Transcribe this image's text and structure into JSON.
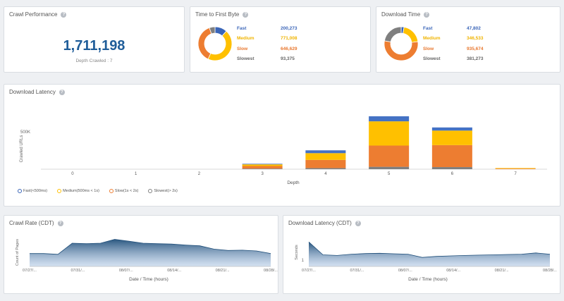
{
  "crawl_performance": {
    "title": "Crawl Performance",
    "total": "1,711,198",
    "depth_note": "Depth Crawled : 7"
  },
  "ttfb": {
    "title": "Time to First Byte",
    "rows": [
      {
        "label": "Fast",
        "value": "200,273",
        "color": "#3a65b8"
      },
      {
        "label": "Medium",
        "value": "771,008",
        "color": "#ffc000"
      },
      {
        "label": "Slow",
        "value": "646,629",
        "color": "#ed7d31"
      },
      {
        "label": "Slowest",
        "value": "93,375",
        "color": "#7f7f7f"
      }
    ]
  },
  "download_time": {
    "title": "Download Time",
    "rows": [
      {
        "label": "Fast",
        "value": "47,802",
        "color": "#3a65b8"
      },
      {
        "label": "Medium",
        "value": "346,533",
        "color": "#ffc000"
      },
      {
        "label": "Slow",
        "value": "935,674",
        "color": "#ed7d31"
      },
      {
        "label": "Slowest",
        "value": "381,273",
        "color": "#7f7f7f"
      }
    ]
  },
  "download_latency": {
    "title": "Download Latency",
    "ylabel": "Crawled URLs",
    "xlabel": "Depth",
    "ytick": "500K",
    "legend": [
      "Fast(<500ms)",
      "Medium(500ms < 1s)",
      "Slow(1s < 2s)",
      "Slowest(> 2s)"
    ]
  },
  "crawl_rate": {
    "title": "Crawl Rate (CDT)",
    "ylabel": "Count of Pages",
    "xlabel": "Date / Time (hours)",
    "x_ticks": [
      "07/27/...",
      "07/31/...",
      "08/07/...",
      "08/14/...",
      "08/21/...",
      "08/28/..."
    ]
  },
  "latency_cdt": {
    "title": "Download Latency (CDT)",
    "ylabel": "Seconds",
    "ytick": "1",
    "xlabel": "Date / Time (hours)",
    "x_ticks": [
      "07/27/...",
      "07/31/...",
      "08/07/...",
      "08/14/...",
      "08/21/...",
      "08/28/..."
    ]
  },
  "chart_data": [
    {
      "type": "bar",
      "title": "Download Latency",
      "xlabel": "Depth",
      "ylabel": "Crawled URLs",
      "categories": [
        "0",
        "1",
        "2",
        "3",
        "4",
        "5",
        "6",
        "7"
      ],
      "ylim": [
        0,
        700000
      ],
      "series": [
        {
          "name": "Slowest(> 2s)",
          "color": "#7f7f7f",
          "values": [
            0,
            0,
            0,
            5000,
            15000,
            32000,
            28000,
            0
          ]
        },
        {
          "name": "Slow(1s < 2s)",
          "color": "#ed7d31",
          "values": [
            0,
            0,
            0,
            35000,
            110000,
            285000,
            295000,
            3000
          ]
        },
        {
          "name": "Medium(500ms < 1s)",
          "color": "#ffc000",
          "values": [
            0,
            0,
            0,
            22000,
            90000,
            325000,
            195000,
            6000
          ]
        },
        {
          "name": "Fast(<500ms)",
          "color": "#4472c4",
          "values": [
            0,
            0,
            0,
            7000,
            38000,
            68000,
            42000,
            0
          ]
        }
      ]
    },
    {
      "type": "pie",
      "title": "Time to First Byte",
      "categories": [
        "Fast",
        "Medium",
        "Slow",
        "Slowest"
      ],
      "values": [
        200273,
        771008,
        646629,
        93375
      ]
    },
    {
      "type": "pie",
      "title": "Download Time",
      "categories": [
        "Fast",
        "Medium",
        "Slow",
        "Slowest"
      ],
      "values": [
        47802,
        346533,
        935674,
        381273
      ]
    },
    {
      "type": "area",
      "title": "Crawl Rate (CDT)",
      "xlabel": "Date / Time (hours)",
      "ylabel": "Count of Pages",
      "x": [
        "07/27",
        "07/29",
        "07/31",
        "08/02",
        "08/04",
        "08/06",
        "08/08",
        "08/10",
        "08/12",
        "08/14",
        "08/16",
        "08/18",
        "08/20",
        "08/22",
        "08/24",
        "08/26",
        "08/28",
        "08/30"
      ],
      "values": [
        0.5,
        0.5,
        0.47,
        0.9,
        0.88,
        0.9,
        1.05,
        0.98,
        0.9,
        0.88,
        0.87,
        0.83,
        0.8,
        0.67,
        0.62,
        0.63,
        0.6,
        0.5
      ]
    },
    {
      "type": "area",
      "title": "Download Latency (CDT)",
      "xlabel": "Date / Time (hours)",
      "ylabel": "Seconds",
      "x": [
        "07/27",
        "07/29",
        "07/31",
        "08/02",
        "08/04",
        "08/06",
        "08/08",
        "08/10",
        "08/12",
        "08/14",
        "08/16",
        "08/18",
        "08/20",
        "08/22",
        "08/24",
        "08/26",
        "08/28",
        "08/30"
      ],
      "values": [
        1.9,
        0.9,
        0.85,
        0.95,
        1.0,
        1.02,
        0.98,
        0.95,
        0.7,
        0.78,
        0.82,
        0.85,
        0.88,
        0.9,
        0.93,
        0.95,
        1.05,
        0.95
      ]
    }
  ]
}
